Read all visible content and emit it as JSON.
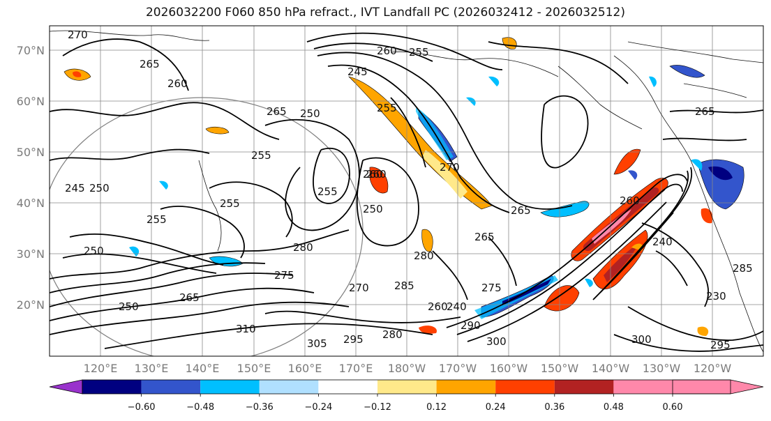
{
  "title": "2026032200 F060 850 hPa refract., IVT Landfall PC (2026032412 - 2026032512)",
  "lat_labels": [
    "70°N",
    "60°N",
    "50°N",
    "40°N",
    "30°N",
    "20°N"
  ],
  "lon_labels": [
    "120°E",
    "130°E",
    "140°E",
    "150°E",
    "160°E",
    "170°E",
    "180°W",
    "170°W",
    "160°W",
    "150°W",
    "140°W",
    "130°W",
    "120°W"
  ],
  "colorbar": {
    "colors": [
      "#9933cc",
      "#000080",
      "#3355cc",
      "#00bfff",
      "#b0e0ff",
      "#ffffff",
      "#ffe98a",
      "#ffa500",
      "#ff4000",
      "#b22222",
      "#ff88aa"
    ],
    "ticks": [
      "−0.60",
      "−0.48",
      "−0.36",
      "−0.24",
      "−0.12",
      "0.12",
      "0.24",
      "0.36",
      "0.48",
      "0.60"
    ]
  },
  "contour_labels": [
    "270",
    "265",
    "260",
    "245",
    "255",
    "260",
    "255",
    "265",
    "250",
    "255",
    "260",
    "255",
    "245",
    "250",
    "255",
    "250",
    "255",
    "260",
    "270",
    "265",
    "265",
    "260",
    "240",
    "280",
    "275",
    "280",
    "285",
    "275",
    "270",
    "290",
    "300",
    "295",
    "310",
    "305",
    "280",
    "300",
    "295",
    "265",
    "265",
    "250",
    "230",
    "250",
    "285",
    "240",
    "260"
  ]
}
